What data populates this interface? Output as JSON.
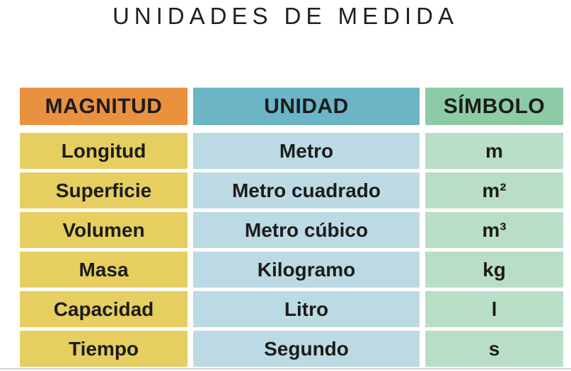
{
  "page": {
    "title": "UNIDADES DE MEDIDA"
  },
  "colors": {
    "header_magnitud": "#EA9140",
    "header_unidad": "#6BB5C6",
    "header_simbolo": "#8DCBA6",
    "cell_magnitud": "#E6CE61",
    "cell_unidad": "#BCDAE4",
    "cell_simbolo": "#B9DEC8",
    "text": "#1C1C1B",
    "title_text": "#1F2021",
    "bottom_line": "#CDD7DB",
    "background": "#FFFFFF"
  },
  "chart_data": {
    "type": "table",
    "title": "UNIDADES DE MEDIDA",
    "columns": [
      "MAGNITUD",
      "UNIDAD",
      "SÍMBOLO"
    ],
    "rows": [
      [
        "Longitud",
        "Metro",
        "m"
      ],
      [
        "Superficie",
        "Metro cuadrado",
        "m²"
      ],
      [
        "Volumen",
        "Metro cúbico",
        "m³"
      ],
      [
        "Masa",
        "Kilogramo",
        "kg"
      ],
      [
        "Capacidad",
        "Litro",
        "l"
      ],
      [
        "Tiempo",
        "Segundo",
        "s"
      ]
    ]
  }
}
